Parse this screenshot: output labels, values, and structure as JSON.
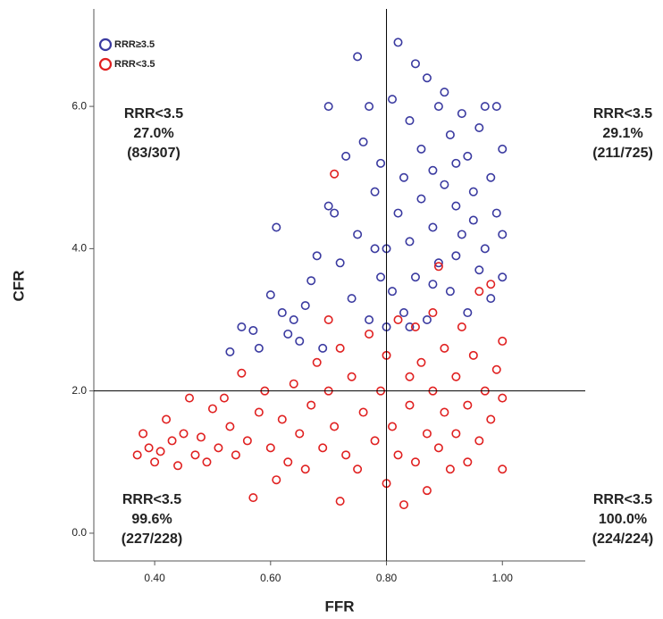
{
  "chart_data": {
    "type": "scatter",
    "x_label": "FFR",
    "y_label": "CFR",
    "xlim": [
      0.295,
      1.143
    ],
    "ylim": [
      -0.39,
      7.37
    ],
    "xticks": [
      {
        "value": 0.4,
        "label": "0.40"
      },
      {
        "value": 0.6,
        "label": "0.60"
      },
      {
        "value": 0.8,
        "label": "0.80"
      },
      {
        "value": 1.0,
        "label": "1.00"
      }
    ],
    "yticks": [
      {
        "value": 0,
        "label": "0.0"
      },
      {
        "value": 2,
        "label": "2.0"
      },
      {
        "value": 4,
        "label": "4.0"
      },
      {
        "value": 6,
        "label": "6.0"
      }
    ],
    "vline": 0.8,
    "hline": 2.0,
    "legend_position": "upper left",
    "annotations": [
      [
        "RRR<3.5",
        "27.0%",
        "(83/307)"
      ],
      [
        "RRR<3.5",
        "29.1%",
        "(211/725)"
      ],
      [
        "RRR<3.5",
        "99.6%",
        "(227/228)"
      ],
      [
        "RRR<3.5",
        "100.0%",
        "(224/224)"
      ]
    ],
    "series": [
      {
        "name": "RRR≥3.5",
        "color": "#3a3aa0",
        "x": [
          0.53,
          0.55,
          0.57,
          0.58,
          0.6,
          0.61,
          0.62,
          0.63,
          0.64,
          0.65,
          0.66,
          0.67,
          0.68,
          0.69,
          0.7,
          0.7,
          0.71,
          0.72,
          0.73,
          0.74,
          0.75,
          0.75,
          0.76,
          0.77,
          0.77,
          0.78,
          0.79,
          0.79,
          0.8,
          0.8,
          0.81,
          0.81,
          0.82,
          0.82,
          0.83,
          0.83,
          0.84,
          0.84,
          0.85,
          0.85,
          0.86,
          0.86,
          0.87,
          0.87,
          0.88,
          0.88,
          0.89,
          0.89,
          0.9,
          0.9,
          0.91,
          0.91,
          0.92,
          0.92,
          0.93,
          0.93,
          0.94,
          0.94,
          0.95,
          0.95,
          0.96,
          0.96,
          0.97,
          0.97,
          0.98,
          0.98,
          0.99,
          0.99,
          1.0,
          1.0,
          1.0,
          0.88,
          0.84,
          0.92,
          0.78
        ],
        "values": [
          2.55,
          2.9,
          2.85,
          2.6,
          3.35,
          4.3,
          3.1,
          2.8,
          3.0,
          2.7,
          3.2,
          3.55,
          3.9,
          2.6,
          4.6,
          6.0,
          4.5,
          3.8,
          5.3,
          3.3,
          6.7,
          4.2,
          5.5,
          3.0,
          6.0,
          4.8,
          3.6,
          5.2,
          4.0,
          2.9,
          6.1,
          3.4,
          6.9,
          4.5,
          5.0,
          3.1,
          5.8,
          4.1,
          6.6,
          3.6,
          5.4,
          4.7,
          6.4,
          3.0,
          5.1,
          4.3,
          6.0,
          3.8,
          6.2,
          4.9,
          5.6,
          3.4,
          4.6,
          3.9,
          5.9,
          4.2,
          5.3,
          3.1,
          4.8,
          4.4,
          5.7,
          3.7,
          6.0,
          4.0,
          5.0,
          3.3,
          4.5,
          6.0,
          5.4,
          3.6,
          4.2,
          3.5,
          2.9,
          5.2,
          4.0
        ]
      },
      {
        "name": "RRR<3.5",
        "color": "#e02020",
        "x": [
          0.37,
          0.38,
          0.39,
          0.4,
          0.41,
          0.42,
          0.43,
          0.44,
          0.45,
          0.46,
          0.47,
          0.48,
          0.49,
          0.5,
          0.51,
          0.52,
          0.53,
          0.54,
          0.55,
          0.56,
          0.57,
          0.58,
          0.59,
          0.6,
          0.61,
          0.62,
          0.63,
          0.64,
          0.65,
          0.66,
          0.67,
          0.68,
          0.69,
          0.7,
          0.7,
          0.71,
          0.71,
          0.72,
          0.72,
          0.73,
          0.74,
          0.75,
          0.76,
          0.77,
          0.78,
          0.79,
          0.8,
          0.8,
          0.81,
          0.82,
          0.82,
          0.83,
          0.84,
          0.84,
          0.85,
          0.85,
          0.86,
          0.87,
          0.87,
          0.88,
          0.88,
          0.89,
          0.89,
          0.9,
          0.9,
          0.91,
          0.92,
          0.92,
          0.93,
          0.94,
          0.94,
          0.95,
          0.96,
          0.96,
          0.97,
          0.98,
          0.98,
          0.99,
          1.0,
          1.0,
          1.0
        ],
        "values": [
          1.1,
          1.4,
          1.2,
          1.0,
          1.15,
          1.6,
          1.3,
          0.95,
          1.4,
          1.9,
          1.1,
          1.35,
          1.0,
          1.75,
          1.2,
          1.9,
          1.5,
          1.1,
          2.25,
          1.3,
          0.5,
          1.7,
          2.0,
          1.2,
          0.75,
          1.6,
          1.0,
          2.1,
          1.4,
          0.9,
          1.8,
          2.4,
          1.2,
          2.0,
          3.0,
          5.05,
          1.5,
          2.6,
          0.45,
          1.1,
          2.2,
          0.9,
          1.7,
          2.8,
          1.3,
          2.0,
          0.7,
          2.5,
          1.5,
          3.0,
          1.1,
          0.4,
          2.2,
          1.8,
          2.9,
          1.0,
          2.4,
          1.4,
          0.6,
          3.1,
          2.0,
          3.75,
          1.2,
          2.6,
          1.7,
          0.9,
          2.2,
          1.4,
          2.9,
          1.8,
          1.0,
          2.5,
          3.4,
          1.3,
          2.0,
          3.5,
          1.6,
          2.3,
          0.9,
          1.9,
          2.7
        ]
      }
    ]
  }
}
